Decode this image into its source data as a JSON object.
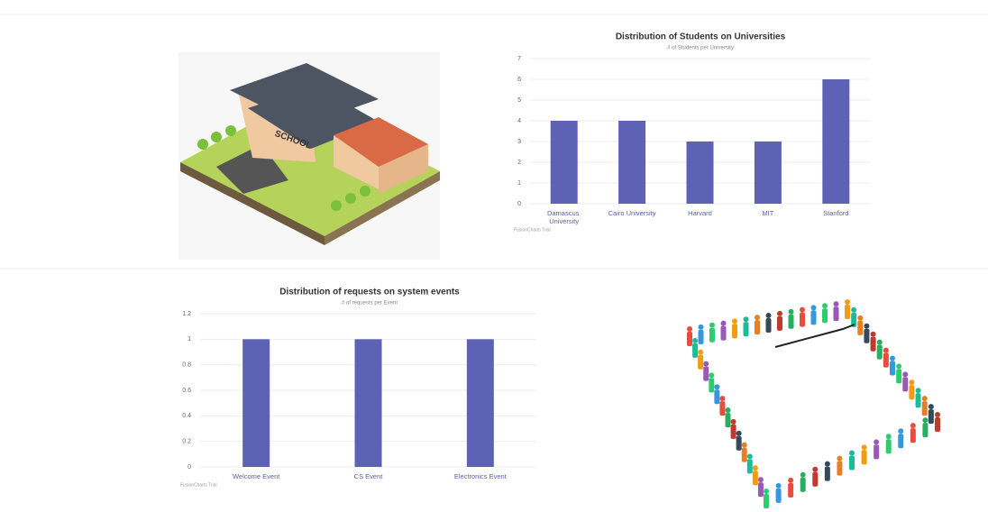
{
  "chart_data": [
    {
      "type": "bar",
      "title": "Distribution of Students on Universities",
      "subtitle": "# of Students per University",
      "categories": [
        "Damascus University",
        "Cairo University",
        "Harvard",
        "MIT",
        "Stanford"
      ],
      "values": [
        4,
        4,
        3,
        3,
        6
      ],
      "color": "#5d62b5",
      "ylim": [
        0,
        7
      ],
      "yticks": [
        0,
        1,
        2,
        3,
        4,
        5,
        6,
        7
      ],
      "grid": true,
      "credit": "FusionCharts Trial"
    },
    {
      "type": "bar",
      "title": "Distribution of requests on system events",
      "subtitle": "# of requests per Event",
      "categories": [
        "Welcome Event",
        "CS Event",
        "Electronics Event"
      ],
      "values": [
        1,
        1,
        1
      ],
      "color": "#5d62b5",
      "ylim": [
        0,
        1.2
      ],
      "yticks": [
        0,
        0.2,
        0.4,
        0.6,
        0.8,
        1,
        1.2
      ],
      "grid": true,
      "credit": "FusionCharts Trial"
    }
  ]
}
